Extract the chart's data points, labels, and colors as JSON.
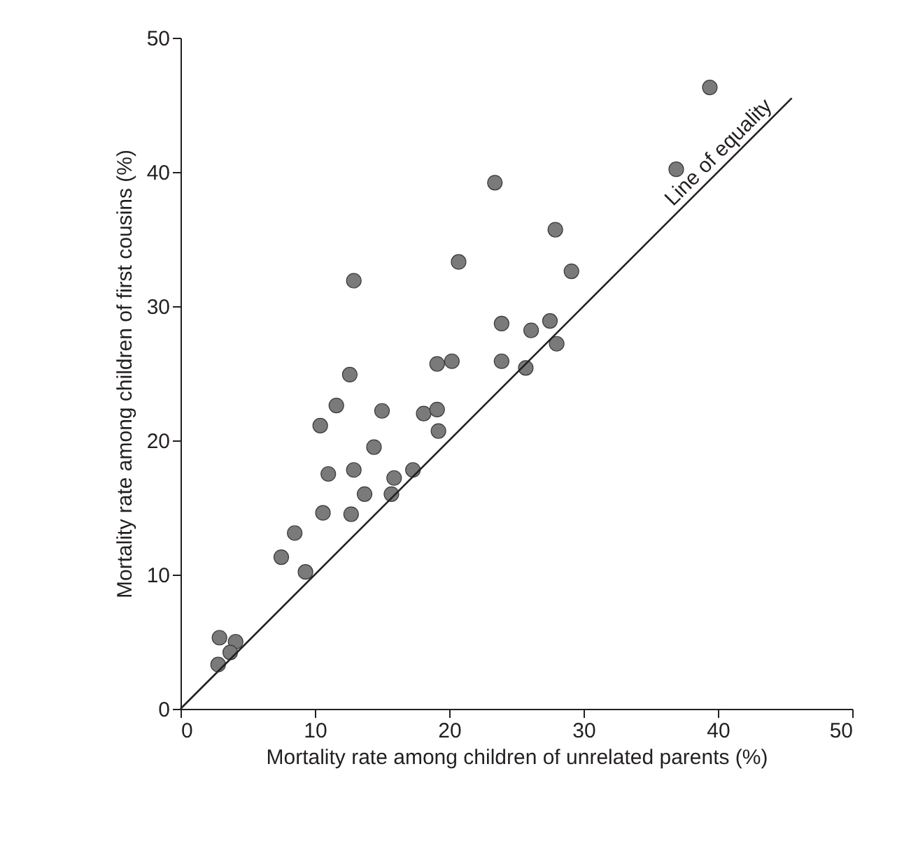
{
  "chart_data": {
    "type": "scatter",
    "xlabel": "Mortality rate among children of unrelated parents (%)",
    "ylabel": "Mortality rate among children of first cousins (%)",
    "xlim": [
      0,
      50
    ],
    "ylim": [
      0,
      50
    ],
    "xticks": [
      0,
      10,
      20,
      30,
      40,
      50
    ],
    "yticks": [
      0,
      10,
      20,
      30,
      40,
      50
    ],
    "series": [
      {
        "marker": "circle",
        "color": "#7a7a7a",
        "x": [
          2.9,
          4.1,
          3.7,
          2.8,
          7.5,
          8.5,
          9.3,
          10.4,
          10.6,
          11.0,
          11.6,
          12.6,
          12.7,
          12.9,
          12.9,
          13.7,
          14.4,
          15.0,
          15.7,
          15.9,
          17.3,
          18.1,
          19.1,
          19.1,
          19.2,
          20.2,
          20.7,
          23.4,
          23.9,
          23.9,
          25.7,
          26.1,
          27.5,
          27.9,
          28.0,
          29.1,
          36.9,
          39.4
        ],
        "values": [
          5.3,
          5.0,
          4.2,
          3.3,
          11.3,
          13.1,
          10.2,
          21.1,
          14.6,
          17.5,
          22.6,
          24.9,
          14.5,
          17.8,
          31.9,
          16.0,
          19.5,
          22.2,
          16.0,
          17.2,
          17.8,
          22.0,
          22.3,
          25.7,
          20.7,
          25.9,
          33.3,
          39.2,
          28.7,
          25.9,
          25.4,
          28.2,
          28.9,
          35.7,
          27.2,
          32.6,
          40.2,
          46.3
        ]
      },
      {
        "type": "line",
        "color": "#231f20",
        "x": [
          0,
          45.5
        ],
        "values": [
          0,
          45.5
        ]
      }
    ],
    "annotations": [
      "Line of equality"
    ]
  }
}
